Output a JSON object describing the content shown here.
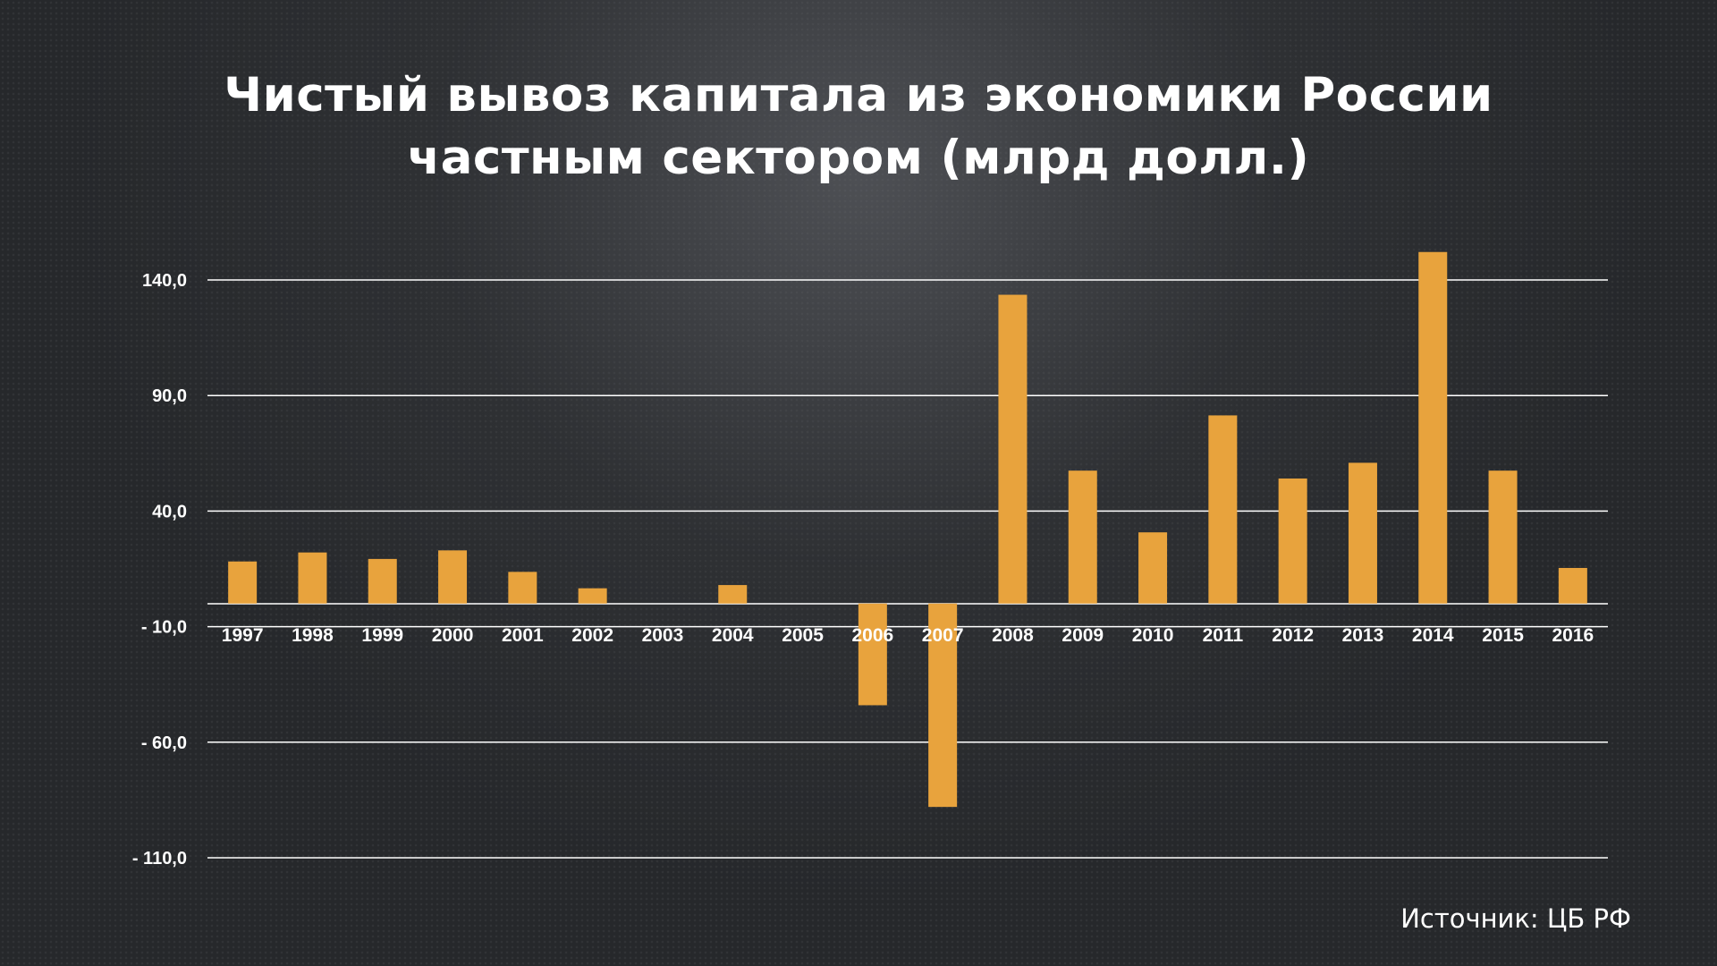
{
  "title": {
    "line1": "Чистый вывоз капитала из экономики России",
    "line2": "частным сектором (млрд долл.)"
  },
  "source": "Источник: ЦБ РФ",
  "colors": {
    "bar": "#e8a33d",
    "grid": "#ffffff",
    "text": "#ffffff"
  },
  "chart_data": {
    "type": "bar",
    "title": "Чистый вывоз капитала из экономики России частным сектором (млрд долл.)",
    "xlabel": "",
    "ylabel": "",
    "categories": [
      "1997",
      "1998",
      "1999",
      "2000",
      "2001",
      "2002",
      "2003",
      "2004",
      "2005",
      "2006",
      "2007",
      "2008",
      "2009",
      "2010",
      "2011",
      "2012",
      "2013",
      "2014",
      "2015",
      "2016"
    ],
    "series": [
      {
        "values": [
          18.2,
          22.1,
          19.3,
          23.0,
          13.7,
          6.6,
          0,
          8.0,
          0,
          -44.0,
          -88.0,
          133.6,
          57.5,
          30.8,
          81.4,
          54.1,
          60.9,
          152.1,
          57.5,
          15.4
        ]
      }
    ],
    "ylim": [
      -110,
      140
    ],
    "yticks": [
      140,
      90,
      40,
      -10,
      -60,
      -110
    ],
    "ytick_labels": [
      "140,0",
      "90,0",
      "40,0",
      "- 10,0",
      "- 60,0",
      "- 110,0"
    ],
    "grid": true,
    "legend": "none"
  }
}
